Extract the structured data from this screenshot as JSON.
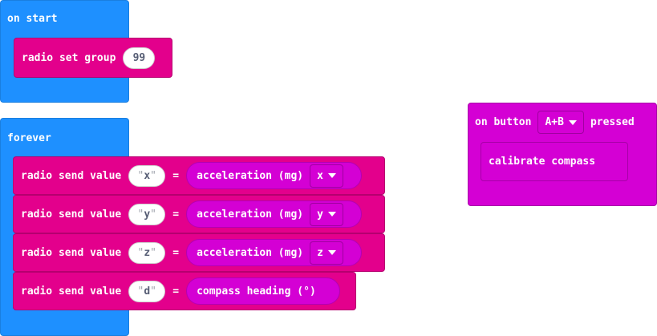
{
  "on_start": {
    "label": "on start",
    "radio_set_group": {
      "label": "radio set group",
      "value": "99"
    }
  },
  "forever": {
    "label": "forever",
    "statements": [
      {
        "label": "radio send value",
        "name": "x",
        "eq": "=",
        "reporter": "acceleration (mg)",
        "axis": "x"
      },
      {
        "label": "radio send value",
        "name": "y",
        "eq": "=",
        "reporter": "acceleration (mg)",
        "axis": "y"
      },
      {
        "label": "radio send value",
        "name": "z",
        "eq": "=",
        "reporter": "acceleration (mg)",
        "axis": "z"
      },
      {
        "label": "radio send value",
        "name": "d",
        "eq": "=",
        "reporter": "compass heading (°)"
      }
    ]
  },
  "on_button": {
    "label_prefix": "on button",
    "button": "A+B",
    "label_suffix": "pressed",
    "statement": "calibrate compass"
  },
  "quote_open": "\"",
  "quote_close": "\"",
  "colors": {
    "basic_blue": "#1e90ff",
    "radio_pink": "#e3008c",
    "input_magenta": "#d400d4"
  }
}
